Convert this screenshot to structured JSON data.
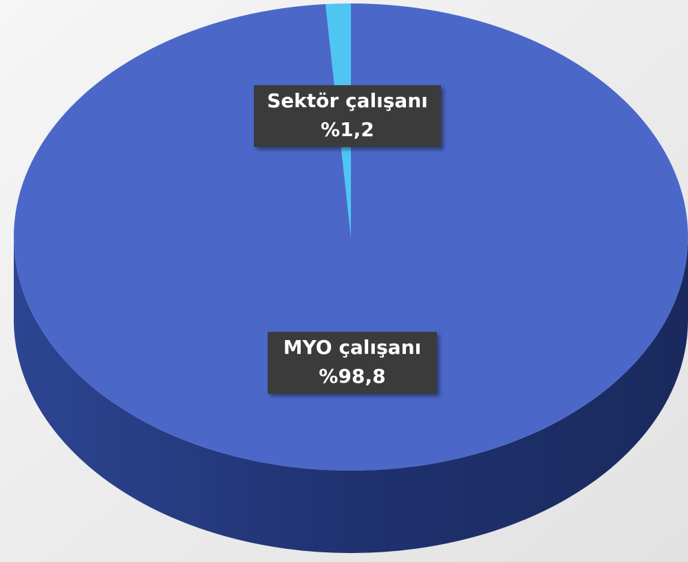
{
  "chart_data": {
    "type": "pie",
    "categories": [
      "Sektör çalışanı",
      "MYO çalışanı"
    ],
    "values": [
      1.2,
      98.8
    ],
    "value_labels": [
      "%1,2",
      "%98,8"
    ],
    "colors": [
      "#4fc6f2",
      "#4b68c9"
    ]
  }
}
